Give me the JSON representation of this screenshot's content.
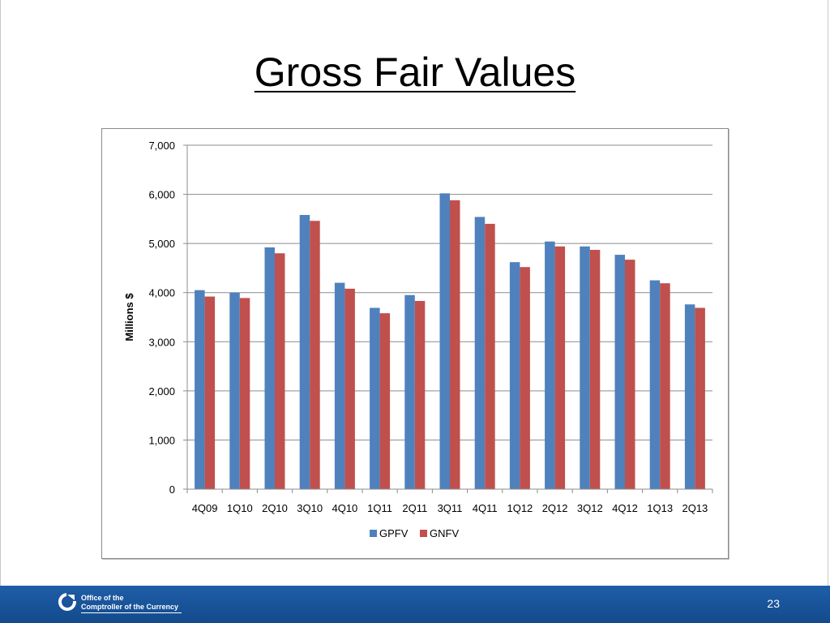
{
  "slide": {
    "title": "Gross Fair Values",
    "page_number": "23"
  },
  "footer": {
    "org_line1": "Office of the",
    "org_line2": "Comptroller of the Currency",
    "logo_icon": "occ-logo-icon"
  },
  "colors": {
    "gpfv": "#4f81bd",
    "gnfv": "#c0504d",
    "footer_bg": "#1a559c"
  },
  "chart_data": {
    "type": "bar",
    "ylabel": "Millions $",
    "xlabel": "",
    "ylim": [
      0,
      7000
    ],
    "yticks": [
      0,
      1000,
      2000,
      3000,
      4000,
      5000,
      6000,
      7000
    ],
    "ytick_labels": [
      "0",
      "1,000",
      "2,000",
      "3,000",
      "4,000",
      "5,000",
      "6,000",
      "7,000"
    ],
    "grid": true,
    "legend_position": "bottom",
    "categories": [
      "4Q09",
      "1Q10",
      "2Q10",
      "3Q10",
      "4Q10",
      "1Q11",
      "2Q11",
      "3Q11",
      "4Q11",
      "1Q12",
      "2Q12",
      "3Q12",
      "4Q12",
      "1Q13",
      "2Q13"
    ],
    "series": [
      {
        "name": "GPFV",
        "color": "#4f81bd",
        "values": [
          4050,
          4000,
          4920,
          5580,
          4200,
          3690,
          3950,
          6020,
          5540,
          4620,
          5040,
          4940,
          4770,
          4250,
          3760
        ]
      },
      {
        "name": "GNFV",
        "color": "#c0504d",
        "values": [
          3920,
          3890,
          4800,
          5460,
          4080,
          3580,
          3830,
          5880,
          5400,
          4520,
          4940,
          4870,
          4670,
          4190,
          3690
        ]
      }
    ]
  }
}
